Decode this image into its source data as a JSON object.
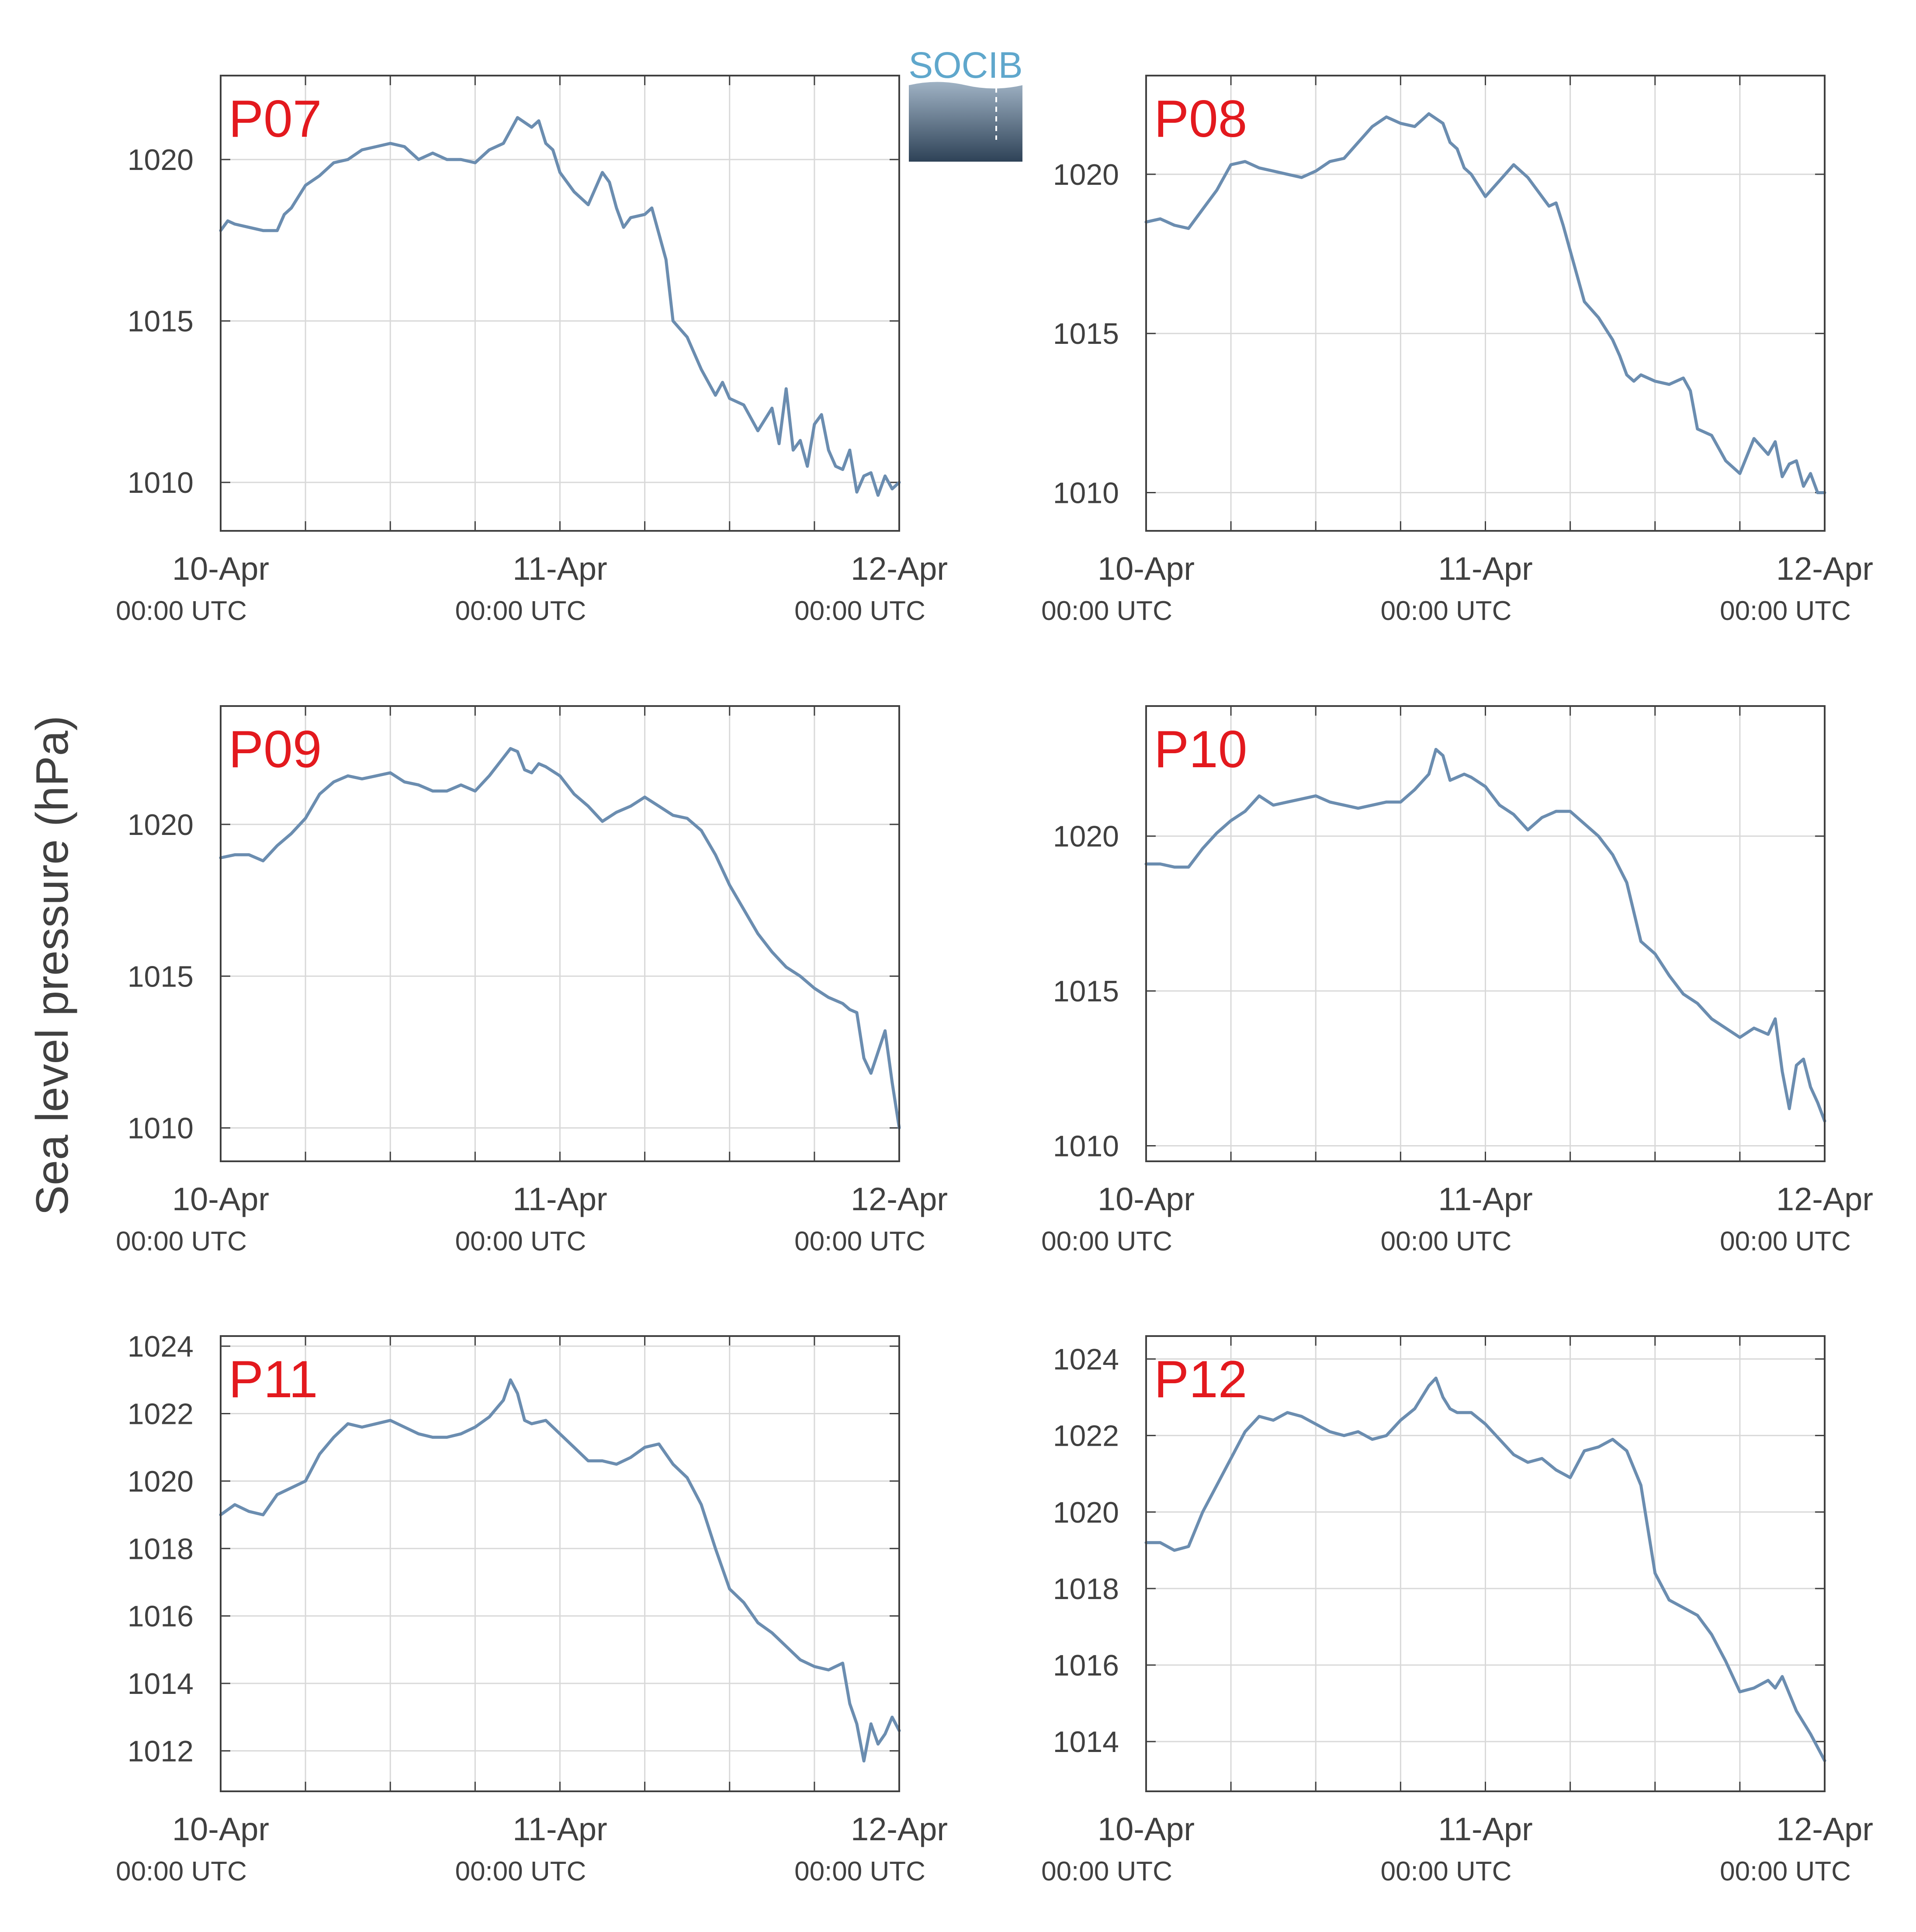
{
  "figure": {
    "ylabel": "Sea level pressure (hPa)",
    "logo": {
      "text": "SOCIB",
      "colors": {
        "text": "#5fa7cc",
        "gradient_top": "#9fb2c4",
        "gradient_bottom": "#2e4257"
      }
    },
    "colors": {
      "line": "#6b8db0",
      "panel_label": "#e3191e",
      "text": "#404040",
      "grid": "#d9d9d9",
      "axis": "#404040"
    }
  },
  "chart_data": [
    {
      "type": "line",
      "panel_label": "P07",
      "x_tick_labels": [
        "10-Apr",
        "11-Apr",
        "12-Apr"
      ],
      "x_tick_sublabels": [
        "00:00 UTC",
        "00:00 UTC",
        "00:00 UTC"
      ],
      "xlim_hours": [
        0,
        48
      ],
      "ylim": [
        1008.5,
        1022.6
      ],
      "y_ticks": [
        1010,
        1015,
        1020
      ],
      "grid": true,
      "series": [
        {
          "x_hours": [
            0,
            0.5,
            1,
            2,
            3,
            4,
            4.5,
            5,
            6,
            7,
            8,
            9,
            10,
            11,
            12,
            13,
            14,
            15,
            16,
            17,
            18,
            19,
            20,
            21,
            22,
            22.5,
            23,
            23.5,
            24,
            25,
            26,
            27,
            27.5,
            28,
            28.5,
            29,
            30,
            30.5,
            31,
            31.5,
            32,
            33,
            34,
            35,
            35.5,
            36,
            37,
            38,
            39,
            39.5,
            40,
            40.5,
            41,
            41.5,
            42,
            42.5,
            43,
            43.5,
            44,
            44.5,
            45,
            45.5,
            46,
            46.5,
            47,
            47.5,
            48
          ],
          "values": [
            1017.8,
            1018.1,
            1018.0,
            1017.9,
            1017.8,
            1017.8,
            1018.3,
            1018.5,
            1019.2,
            1019.5,
            1019.9,
            1020.0,
            1020.3,
            1020.4,
            1020.5,
            1020.4,
            1020.0,
            1020.2,
            1020.0,
            1020.0,
            1019.9,
            1020.3,
            1020.5,
            1021.3,
            1021.0,
            1021.2,
            1020.5,
            1020.3,
            1019.6,
            1019.0,
            1018.6,
            1019.6,
            1019.3,
            1018.5,
            1017.9,
            1018.2,
            1018.3,
            1018.5,
            1017.7,
            1016.9,
            1015.0,
            1014.5,
            1013.5,
            1012.7,
            1013.1,
            1012.6,
            1012.4,
            1011.6,
            1012.3,
            1011.2,
            1012.9,
            1011.0,
            1011.3,
            1010.5,
            1011.8,
            1012.1,
            1011.0,
            1010.5,
            1010.4,
            1011.0,
            1009.7,
            1010.2,
            1010.3,
            1009.6,
            1010.2,
            1009.8,
            1010.0
          ]
        }
      ]
    },
    {
      "type": "line",
      "panel_label": "P08",
      "x_tick_labels": [
        "10-Apr",
        "11-Apr",
        "12-Apr"
      ],
      "x_tick_sublabels": [
        "00:00 UTC",
        "00:00 UTC",
        "00:00 UTC"
      ],
      "xlim_hours": [
        0,
        48
      ],
      "ylim": [
        1008.8,
        1023.1
      ],
      "y_ticks": [
        1010,
        1015,
        1020
      ],
      "grid": true,
      "series": [
        {
          "x_hours": [
            0,
            1,
            2,
            3,
            4,
            5,
            6,
            7,
            8,
            9,
            10,
            11,
            12,
            13,
            14,
            15,
            16,
            17,
            18,
            19,
            20,
            21,
            21.5,
            22,
            22.5,
            23,
            24,
            25,
            26,
            27,
            28,
            28.5,
            29,
            29.5,
            30,
            31,
            32,
            33,
            33.5,
            34,
            34.5,
            35,
            36,
            37,
            38,
            38.5,
            39,
            40,
            41,
            42,
            43,
            44,
            44.5,
            45,
            45.5,
            46,
            46.5,
            47,
            47.5,
            48
          ],
          "values": [
            1018.5,
            1018.6,
            1018.4,
            1018.3,
            1018.9,
            1019.5,
            1020.3,
            1020.4,
            1020.2,
            1020.1,
            1020.0,
            1019.9,
            1020.1,
            1020.4,
            1020.5,
            1021.0,
            1021.5,
            1021.8,
            1021.6,
            1021.5,
            1021.9,
            1021.6,
            1021.0,
            1020.8,
            1020.2,
            1020.0,
            1019.3,
            1019.8,
            1020.3,
            1019.9,
            1019.3,
            1019.0,
            1019.1,
            1018.4,
            1017.6,
            1016.0,
            1015.5,
            1014.8,
            1014.3,
            1013.7,
            1013.5,
            1013.7,
            1013.5,
            1013.4,
            1013.6,
            1013.2,
            1012.0,
            1011.8,
            1011.0,
            1010.6,
            1011.7,
            1011.2,
            1011.6,
            1010.5,
            1010.9,
            1011.0,
            1010.2,
            1010.6,
            1010.0,
            1010.0
          ]
        }
      ]
    },
    {
      "type": "line",
      "panel_label": "P09",
      "x_tick_labels": [
        "10-Apr",
        "11-Apr",
        "12-Apr"
      ],
      "x_tick_sublabels": [
        "00:00 UTC",
        "00:00 UTC",
        "00:00 UTC"
      ],
      "xlim_hours": [
        0,
        48
      ],
      "ylim": [
        1008.9,
        1023.9
      ],
      "y_ticks": [
        1010,
        1015,
        1020
      ],
      "grid": true,
      "series": [
        {
          "x_hours": [
            0,
            1,
            2,
            3,
            4,
            5,
            6,
            7,
            8,
            9,
            10,
            11,
            12,
            13,
            14,
            15,
            16,
            17,
            18,
            19,
            20,
            20.5,
            21,
            21.5,
            22,
            22.5,
            23,
            24,
            25,
            26,
            27,
            28,
            29,
            30,
            31,
            32,
            33,
            34,
            35,
            36,
            37,
            38,
            39,
            40,
            41,
            42,
            43,
            44,
            44.5,
            45,
            45.5,
            46,
            46.5,
            47,
            47.5,
            48
          ],
          "values": [
            1018.9,
            1019.0,
            1019.0,
            1018.8,
            1019.3,
            1019.7,
            1020.2,
            1021.0,
            1021.4,
            1021.6,
            1021.5,
            1021.6,
            1021.7,
            1021.4,
            1021.3,
            1021.1,
            1021.1,
            1021.3,
            1021.1,
            1021.6,
            1022.2,
            1022.5,
            1022.4,
            1021.8,
            1021.7,
            1022.0,
            1021.9,
            1021.6,
            1021.0,
            1020.6,
            1020.1,
            1020.4,
            1020.6,
            1020.9,
            1020.6,
            1020.3,
            1020.2,
            1019.8,
            1019.0,
            1018.0,
            1017.2,
            1016.4,
            1015.8,
            1015.3,
            1015.0,
            1014.6,
            1014.3,
            1014.1,
            1013.9,
            1013.8,
            1012.3,
            1011.8,
            1012.5,
            1013.2,
            1011.5,
            1010.0
          ]
        }
      ]
    },
    {
      "type": "line",
      "panel_label": "P10",
      "x_tick_labels": [
        "10-Apr",
        "11-Apr",
        "12-Apr"
      ],
      "x_tick_sublabels": [
        "00:00 UTC",
        "00:00 UTC",
        "00:00 UTC"
      ],
      "xlim_hours": [
        0,
        48
      ],
      "ylim": [
        1009.5,
        1024.2
      ],
      "y_ticks": [
        1010,
        1015,
        1020
      ],
      "grid": true,
      "series": [
        {
          "x_hours": [
            0,
            1,
            2,
            3,
            4,
            5,
            6,
            7,
            8,
            9,
            10,
            11,
            12,
            13,
            14,
            15,
            16,
            17,
            18,
            19,
            20,
            20.5,
            21,
            21.5,
            22,
            22.5,
            23,
            24,
            25,
            26,
            27,
            28,
            29,
            30,
            31,
            32,
            33,
            34,
            35,
            36,
            37,
            38,
            39,
            40,
            41,
            42,
            43,
            44,
            44.5,
            45,
            45.5,
            46,
            46.5,
            47,
            47.5,
            48
          ],
          "values": [
            1019.1,
            1019.1,
            1019.0,
            1019.0,
            1019.6,
            1020.1,
            1020.5,
            1020.8,
            1021.3,
            1021.0,
            1021.1,
            1021.2,
            1021.3,
            1021.1,
            1021.0,
            1020.9,
            1021.0,
            1021.1,
            1021.1,
            1021.5,
            1022.0,
            1022.8,
            1022.6,
            1021.8,
            1021.9,
            1022.0,
            1021.9,
            1021.6,
            1021.0,
            1020.7,
            1020.2,
            1020.6,
            1020.8,
            1020.8,
            1020.4,
            1020.0,
            1019.4,
            1018.5,
            1016.6,
            1016.2,
            1015.5,
            1014.9,
            1014.6,
            1014.1,
            1013.8,
            1013.5,
            1013.8,
            1013.6,
            1014.1,
            1012.4,
            1011.2,
            1012.6,
            1012.8,
            1011.9,
            1011.4,
            1010.8
          ]
        }
      ]
    },
    {
      "type": "line",
      "panel_label": "P11",
      "x_tick_labels": [
        "10-Apr",
        "11-Apr",
        "12-Apr"
      ],
      "x_tick_sublabels": [
        "00:00 UTC",
        "00:00 UTC",
        "00:00 UTC"
      ],
      "xlim_hours": [
        0,
        48
      ],
      "ylim": [
        1010.8,
        1024.3
      ],
      "y_ticks": [
        1012,
        1014,
        1016,
        1018,
        1020,
        1022,
        1024
      ],
      "grid": true,
      "series": [
        {
          "x_hours": [
            0,
            1,
            2,
            3,
            4,
            5,
            6,
            7,
            8,
            9,
            10,
            11,
            12,
            13,
            14,
            15,
            16,
            17,
            18,
            19,
            20,
            20.5,
            21,
            21.5,
            22,
            23,
            24,
            25,
            26,
            27,
            28,
            29,
            30,
            31,
            32,
            33,
            34,
            35,
            36,
            37,
            38,
            39,
            40,
            41,
            42,
            43,
            44,
            44.5,
            45,
            45.5,
            46,
            46.5,
            47,
            47.5,
            48
          ],
          "values": [
            1019.0,
            1019.3,
            1019.1,
            1019.0,
            1019.6,
            1019.8,
            1020.0,
            1020.8,
            1021.3,
            1021.7,
            1021.6,
            1021.7,
            1021.8,
            1021.6,
            1021.4,
            1021.3,
            1021.3,
            1021.4,
            1021.6,
            1021.9,
            1022.4,
            1023.0,
            1022.6,
            1021.8,
            1021.7,
            1021.8,
            1021.4,
            1021.0,
            1020.6,
            1020.6,
            1020.5,
            1020.7,
            1021.0,
            1021.1,
            1020.5,
            1020.1,
            1019.3,
            1018.0,
            1016.8,
            1016.4,
            1015.8,
            1015.5,
            1015.1,
            1014.7,
            1014.5,
            1014.4,
            1014.6,
            1013.4,
            1012.8,
            1011.7,
            1012.8,
            1012.2,
            1012.5,
            1013.0,
            1012.6
          ]
        }
      ]
    },
    {
      "type": "line",
      "panel_label": "P12",
      "x_tick_labels": [
        "10-Apr",
        "11-Apr",
        "12-Apr"
      ],
      "x_tick_sublabels": [
        "00:00 UTC",
        "00:00 UTC",
        "00:00 UTC"
      ],
      "xlim_hours": [
        0,
        48
      ],
      "ylim": [
        1012.7,
        1024.6
      ],
      "y_ticks": [
        1014,
        1016,
        1018,
        1020,
        1022,
        1024
      ],
      "grid": true,
      "series": [
        {
          "x_hours": [
            0,
            1,
            2,
            3,
            4,
            5,
            6,
            7,
            8,
            9,
            10,
            11,
            12,
            13,
            14,
            15,
            16,
            17,
            18,
            19,
            20,
            20.5,
            21,
            21.5,
            22,
            23,
            24,
            25,
            26,
            27,
            28,
            29,
            30,
            31,
            32,
            33,
            34,
            35,
            36,
            37,
            38,
            39,
            40,
            41,
            42,
            43,
            44,
            44.5,
            45,
            46,
            47,
            48
          ],
          "values": [
            1019.2,
            1019.2,
            1019.0,
            1019.1,
            1020.0,
            1020.7,
            1021.4,
            1022.1,
            1022.5,
            1022.4,
            1022.6,
            1022.5,
            1022.3,
            1022.1,
            1022.0,
            1022.1,
            1021.9,
            1022.0,
            1022.4,
            1022.7,
            1023.3,
            1023.5,
            1023.0,
            1022.7,
            1022.6,
            1022.6,
            1022.3,
            1021.9,
            1021.5,
            1021.3,
            1021.4,
            1021.1,
            1020.9,
            1021.6,
            1021.7,
            1021.9,
            1021.6,
            1020.7,
            1018.4,
            1017.7,
            1017.5,
            1017.3,
            1016.8,
            1016.1,
            1015.3,
            1015.4,
            1015.6,
            1015.4,
            1015.7,
            1014.8,
            1014.2,
            1013.5
          ]
        }
      ]
    }
  ]
}
